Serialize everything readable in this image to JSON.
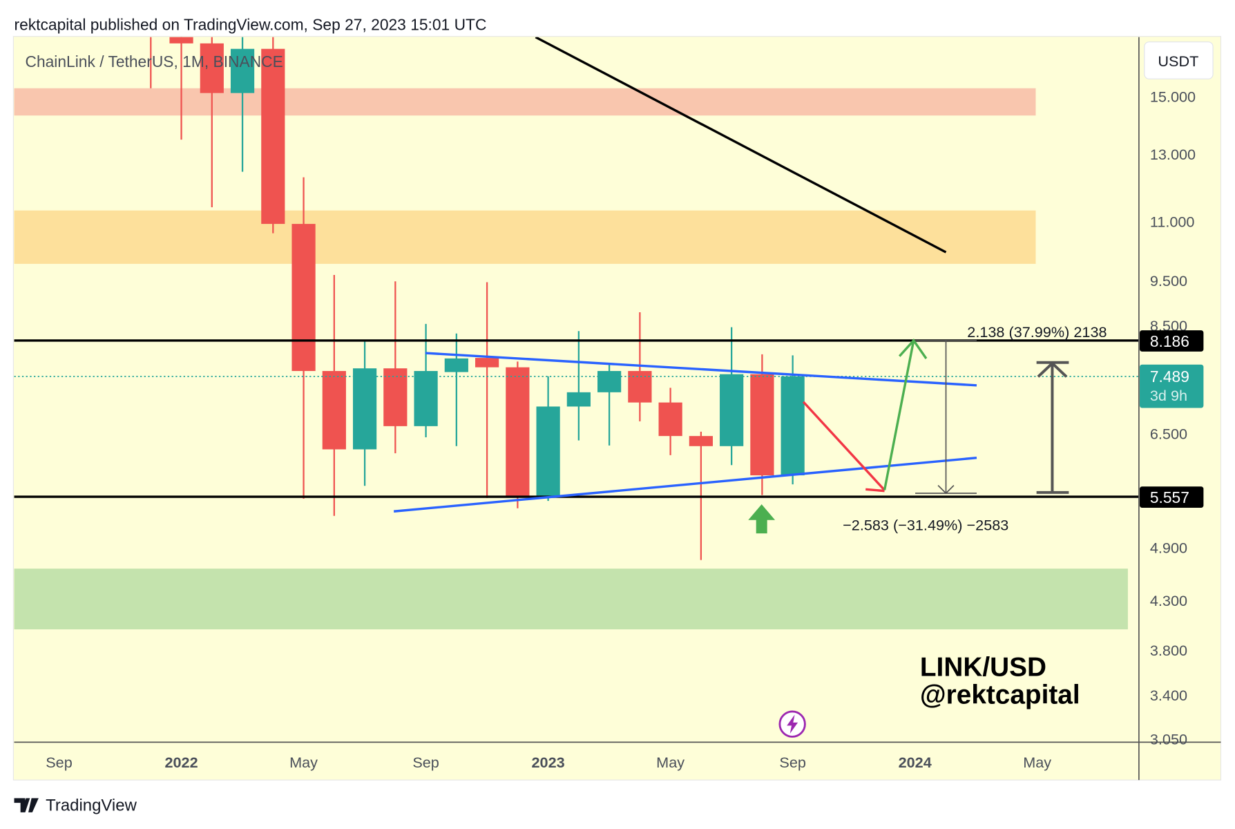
{
  "header": {
    "published": "rektcapital published on TradingView.com, Sep 27, 2023 15:01 UTC"
  },
  "symbol_title": "ChainLink / TetherUS, 1M, BINANCE",
  "currency_button": "USDT",
  "footer": {
    "brand": "TradingView"
  },
  "watermark": {
    "line1": "LINK/USD",
    "line2": "@rektcapital"
  },
  "colors": {
    "up": "#26a69a",
    "down": "#ef5350",
    "background": "#fefed8",
    "trendline_blue": "#2962ff",
    "supply_zone": "#f9c6ae",
    "resistance_zone": "#fde09b",
    "demand_zone": "#c4e3ad"
  },
  "chart_data": {
    "type": "candlestick",
    "title": "ChainLink / TetherUS, 1M, BINANCE",
    "scale": "log",
    "ylim": [
      3.0,
      17.4
    ],
    "y_ticks": [
      "15.000",
      "13.000",
      "11.000",
      "9.500",
      "8.500",
      "6.500",
      "4.900",
      "4.300",
      "3.800",
      "3.400",
      "3.050"
    ],
    "y_tick_values": [
      15,
      13,
      11,
      9.5,
      8.5,
      6.5,
      4.9,
      4.3,
      3.8,
      3.4,
      3.05
    ],
    "x_ticks": [
      {
        "label": "Sep",
        "month": 0,
        "bold": false
      },
      {
        "label": "2022",
        "month": 4,
        "bold": true
      },
      {
        "label": "May",
        "month": 8,
        "bold": false
      },
      {
        "label": "Sep",
        "month": 12,
        "bold": false
      },
      {
        "label": "2023",
        "month": 16,
        "bold": true
      },
      {
        "label": "May",
        "month": 20,
        "bold": false
      },
      {
        "label": "Sep",
        "month": 24,
        "bold": false
      },
      {
        "label": "2024",
        "month": 28,
        "bold": true
      },
      {
        "label": "May",
        "month": 32,
        "bold": false
      }
    ],
    "candles": [
      {
        "date": "2021-12",
        "o": 24.0,
        "h": 28.0,
        "l": 15.3,
        "c": 19.5
      },
      {
        "date": "2022-01",
        "o": 19.5,
        "h": 20.0,
        "l": 13.47,
        "c": 17.1
      },
      {
        "date": "2022-02",
        "o": 17.1,
        "h": 18.5,
        "l": 11.39,
        "c": 15.12
      },
      {
        "date": "2022-03",
        "o": 15.12,
        "h": 18.0,
        "l": 12.44,
        "c": 16.87
      },
      {
        "date": "2022-04",
        "o": 16.87,
        "h": 18.0,
        "l": 10.68,
        "c": 10.93
      },
      {
        "date": "2022-05",
        "o": 10.93,
        "h": 12.27,
        "l": 5.53,
        "c": 7.59
      },
      {
        "date": "2022-06",
        "o": 7.59,
        "h": 9.63,
        "l": 5.3,
        "c": 6.25
      },
      {
        "date": "2022-07",
        "o": 6.25,
        "h": 8.19,
        "l": 5.71,
        "c": 7.64
      },
      {
        "date": "2022-08",
        "o": 7.64,
        "h": 9.48,
        "l": 6.19,
        "c": 6.62
      },
      {
        "date": "2022-09",
        "o": 6.62,
        "h": 8.53,
        "l": 6.44,
        "c": 7.59
      },
      {
        "date": "2022-10",
        "o": 7.57,
        "h": 8.33,
        "l": 6.3,
        "c": 7.83
      },
      {
        "date": "2022-11",
        "o": 7.84,
        "h": 9.46,
        "l": 5.54,
        "c": 7.66
      },
      {
        "date": "2022-12",
        "o": 7.66,
        "h": 7.77,
        "l": 5.4,
        "c": 5.55
      },
      {
        "date": "2023-01",
        "o": 5.55,
        "h": 7.49,
        "l": 5.5,
        "c": 6.95
      },
      {
        "date": "2023-02",
        "o": 6.95,
        "h": 8.38,
        "l": 6.39,
        "c": 7.2
      },
      {
        "date": "2023-03",
        "o": 7.2,
        "h": 7.72,
        "l": 6.31,
        "c": 7.59
      },
      {
        "date": "2023-04",
        "o": 7.59,
        "h": 8.78,
        "l": 6.7,
        "c": 7.02
      },
      {
        "date": "2023-05",
        "o": 7.02,
        "h": 7.28,
        "l": 6.16,
        "c": 6.46
      },
      {
        "date": "2023-06",
        "o": 6.46,
        "h": 6.53,
        "l": 4.75,
        "c": 6.3
      },
      {
        "date": "2023-07",
        "o": 6.3,
        "h": 8.46,
        "l": 6.01,
        "c": 7.53
      },
      {
        "date": "2023-08",
        "o": 7.53,
        "h": 7.91,
        "l": 5.58,
        "c": 5.86
      },
      {
        "date": "2023-09",
        "o": 5.86,
        "h": 7.89,
        "l": 5.73,
        "c": 7.489
      }
    ],
    "levels": [
      {
        "name": "resistance",
        "value": 8.186,
        "label": "8.186"
      },
      {
        "name": "support",
        "value": 5.557,
        "label": "5.557"
      }
    ],
    "last_price": {
      "value": 7.489,
      "label": "7.489",
      "countdown": "3d 9h"
    },
    "zones": [
      {
        "name": "supply",
        "from": 14.3,
        "to": 15.3
      },
      {
        "name": "resistance",
        "from": 9.9,
        "to": 11.3
      },
      {
        "name": "demand",
        "from": 4.0,
        "to": 4.65
      }
    ],
    "annotations": {
      "measure_up": "2.138 (37.99%) 2138",
      "measure_down": "−2.583 (−31.49%) −2583"
    }
  }
}
